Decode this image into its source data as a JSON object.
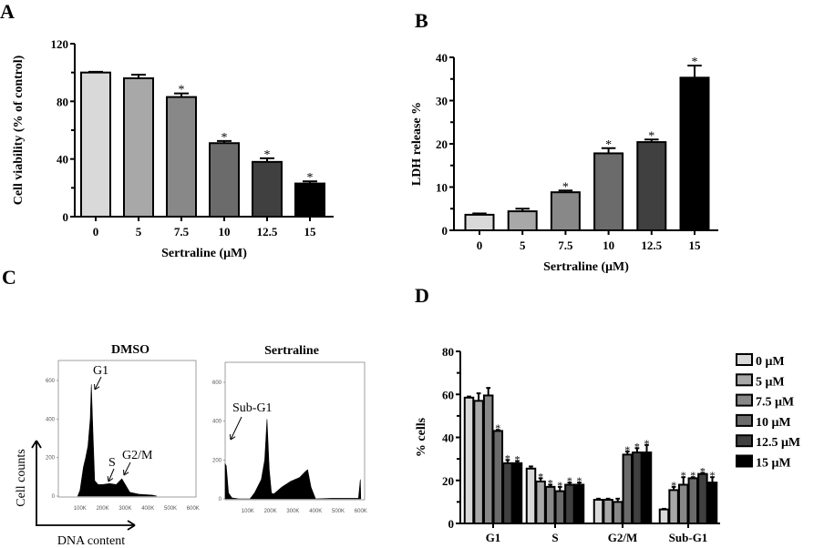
{
  "panel_labels": [
    "A",
    "B",
    "C",
    "D"
  ],
  "chart_data": [
    {
      "id": "A",
      "type": "bar",
      "categories": [
        "0",
        "5",
        "7.5",
        "10",
        "12.5",
        "15"
      ],
      "values": [
        100,
        96,
        83,
        51,
        38,
        23
      ],
      "errors": [
        0.5,
        2.5,
        2.5,
        1.5,
        2.5,
        1.5
      ],
      "significant": [
        false,
        false,
        true,
        true,
        true,
        true
      ],
      "colors": [
        "#d9d9d9",
        "#a8a8a8",
        "#888888",
        "#6b6b6b",
        "#404040",
        "#000000"
      ],
      "xlabel": "Sertraline (μM)",
      "ylabel": "Cell viability (% of control)",
      "ylim": [
        0,
        120
      ],
      "yticks": [
        "0",
        "40",
        "80",
        "120"
      ],
      "grid": false
    },
    {
      "id": "B",
      "type": "bar",
      "categories": [
        "0",
        "5",
        "7.5",
        "10",
        "12.5",
        "15"
      ],
      "values": [
        3.6,
        4.4,
        8.8,
        17.8,
        20.4,
        35.3
      ],
      "errors": [
        0.3,
        0.6,
        0.4,
        1.2,
        0.6,
        2.8
      ],
      "significant": [
        false,
        false,
        true,
        true,
        true,
        true
      ],
      "colors": [
        "#d9d9d9",
        "#a8a8a8",
        "#888888",
        "#6b6b6b",
        "#404040",
        "#000000"
      ],
      "xlabel": "Sertraline (μM)",
      "ylabel": "LDH release %",
      "ylim": [
        0,
        40
      ],
      "yticks": [
        "0",
        "10",
        "20",
        "30",
        "40"
      ],
      "grid": false
    },
    {
      "id": "C",
      "type": "area",
      "xlabel": "DNA content",
      "ylabel": "Cell counts",
      "plots": [
        {
          "title": "DMSO",
          "points": [
            [
              90,
              0
            ],
            [
              100,
              30
            ],
            [
              115,
              150
            ],
            [
              125,
              200
            ],
            [
              135,
              260
            ],
            [
              145,
              400
            ],
            [
              150,
              580
            ],
            [
              158,
              300
            ],
            [
              165,
              80
            ],
            [
              180,
              60
            ],
            [
              200,
              60
            ],
            [
              230,
              65
            ],
            [
              260,
              60
            ],
            [
              285,
              90
            ],
            [
              300,
              60
            ],
            [
              320,
              20
            ],
            [
              360,
              10
            ],
            [
              420,
              5
            ],
            [
              440,
              0
            ]
          ],
          "annotations": [
            "G1",
            "S",
            "G2/M"
          ]
        },
        {
          "title": "Sertraline",
          "points": [
            [
              0,
              180
            ],
            [
              5,
              170
            ],
            [
              15,
              30
            ],
            [
              30,
              5
            ],
            [
              60,
              0
            ],
            [
              110,
              0
            ],
            [
              130,
              30
            ],
            [
              160,
              100
            ],
            [
              175,
              200
            ],
            [
              185,
              410
            ],
            [
              195,
              150
            ],
            [
              205,
              30
            ],
            [
              215,
              25
            ],
            [
              250,
              60
            ],
            [
              290,
              90
            ],
            [
              330,
              110
            ],
            [
              355,
              140
            ],
            [
              365,
              150
            ],
            [
              380,
              60
            ],
            [
              400,
              0
            ],
            [
              470,
              3
            ],
            [
              590,
              3
            ],
            [
              598,
              100
            ],
            [
              600,
              0
            ]
          ],
          "annotations": [
            "Sub-G1"
          ]
        }
      ],
      "xticks": [
        "100K",
        "200K",
        "300K",
        "400K",
        "500K",
        "600K"
      ],
      "yticks": [
        "0",
        "200",
        "400",
        "600"
      ],
      "xlim": [
        0,
        610
      ],
      "ylim": [
        0,
        690
      ]
    },
    {
      "id": "D",
      "type": "bar",
      "categories": [
        "G1",
        "S",
        "G2/M",
        "Sub-G1"
      ],
      "series": [
        {
          "name": "0 μM",
          "color": "#d9d9d9",
          "values": [
            58.5,
            25.5,
            11,
            6.5
          ],
          "errors": [
            0.5,
            1,
            0.5,
            0.3
          ],
          "significant": [
            false,
            false,
            false,
            false
          ]
        },
        {
          "name": "5 μM",
          "color": "#a8a8a8",
          "values": [
            57,
            19.5,
            11,
            15.5
          ],
          "errors": [
            3.5,
            1.5,
            0.5,
            1.5
          ],
          "significant": [
            false,
            true,
            false,
            true
          ]
        },
        {
          "name": "7.5 μM",
          "color": "#888888",
          "values": [
            59.5,
            17,
            10,
            18
          ],
          "errors": [
            3.5,
            1,
            1.5,
            3.5
          ],
          "significant": [
            false,
            true,
            false,
            true
          ]
        },
        {
          "name": "10 μM",
          "color": "#6b6b6b",
          "values": [
            43,
            15,
            32,
            21
          ],
          "errors": [
            0.5,
            2,
            1.5,
            0.5
          ],
          "significant": [
            true,
            true,
            true,
            true
          ]
        },
        {
          "name": "12.5 μM",
          "color": "#404040",
          "values": [
            28,
            18,
            33,
            23
          ],
          "errors": [
            1.5,
            1,
            2,
            0.5
          ],
          "significant": [
            true,
            true,
            true,
            true
          ]
        },
        {
          "name": "15 μM",
          "color": "#000000",
          "values": [
            28,
            18,
            33,
            19
          ],
          "errors": [
            1,
            1,
            3.5,
            2.5
          ],
          "significant": [
            true,
            true,
            true,
            true
          ]
        }
      ],
      "xlabel": "",
      "ylabel": "% cells",
      "ylim": [
        0,
        80
      ],
      "yticks": [
        "0",
        "20",
        "40",
        "60",
        "80"
      ],
      "legend": "right",
      "grid": false
    }
  ]
}
